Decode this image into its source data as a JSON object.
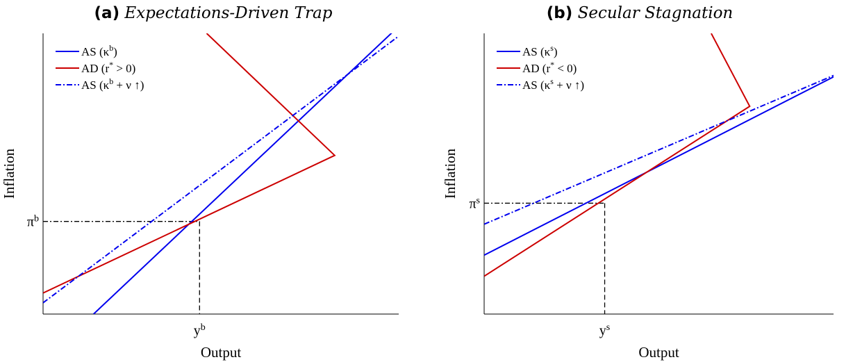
{
  "chart_data": [
    {
      "type": "line",
      "panel_label": "(a)",
      "title": "Expectations-Driven Trap",
      "xlabel": "Output",
      "ylabel": "Inflation",
      "x_tick_label": "y",
      "x_tick_sup": "b",
      "y_tick_label": "π",
      "y_tick_sup": "b",
      "xlim": [
        0,
        10
      ],
      "ylim": [
        0,
        10
      ],
      "equilibrium": {
        "x": 4.4,
        "y": 3.3
      },
      "legend_position": "top-left",
      "grid": false,
      "series": [
        {
          "name": "AS (κ",
          "name_sup": "b",
          "name_tail": ")",
          "color": "#0000ee",
          "dash": "solid",
          "points": [
            [
              1.42,
              0.0
            ],
            [
              10.0,
              10.25
            ]
          ]
        },
        {
          "name": "AD (r",
          "name_sup": "*",
          "name_tail": " > 0)",
          "color": "#cc0000",
          "dash": "solid",
          "points": [
            [
              0.0,
              0.75
            ],
            [
              8.2,
              5.65
            ],
            [
              4.6,
              10.0
            ]
          ]
        },
        {
          "name": "AS (κ",
          "name_sup": "b",
          "name_tail": " + ν ↑)",
          "color": "#0000ee",
          "dash": "dashdot",
          "points": [
            [
              0.0,
              0.4
            ],
            [
              10.0,
              9.9
            ]
          ]
        }
      ]
    },
    {
      "type": "line",
      "panel_label": "(b)",
      "title": "Secular Stagnation",
      "xlabel": "Output",
      "ylabel": "Inflation",
      "x_tick_label": "y",
      "x_tick_sup": "s",
      "y_tick_label": "π",
      "y_tick_sup": "s",
      "xlim": [
        0,
        10
      ],
      "ylim": [
        0,
        10
      ],
      "equilibrium": {
        "x": 3.45,
        "y": 3.95
      },
      "legend_position": "top-left",
      "grid": false,
      "series": [
        {
          "name": "AS (κ",
          "name_sup": "s",
          "name_tail": ")",
          "color": "#0000ee",
          "dash": "solid",
          "points": [
            [
              0.0,
              2.1
            ],
            [
              10.0,
              8.45
            ]
          ]
        },
        {
          "name": "AD (r",
          "name_sup": "*",
          "name_tail": " < 0)",
          "color": "#cc0000",
          "dash": "solid",
          "points": [
            [
              0.0,
              1.35
            ],
            [
              7.6,
              7.4
            ],
            [
              6.5,
              10.0
            ]
          ]
        },
        {
          "name": "AS (κ",
          "name_sup": "s",
          "name_tail": " + ν ↑)",
          "color": "#0000ee",
          "dash": "dashdot",
          "points": [
            [
              0.0,
              3.2
            ],
            [
              10.0,
              8.5
            ]
          ]
        }
      ]
    }
  ]
}
